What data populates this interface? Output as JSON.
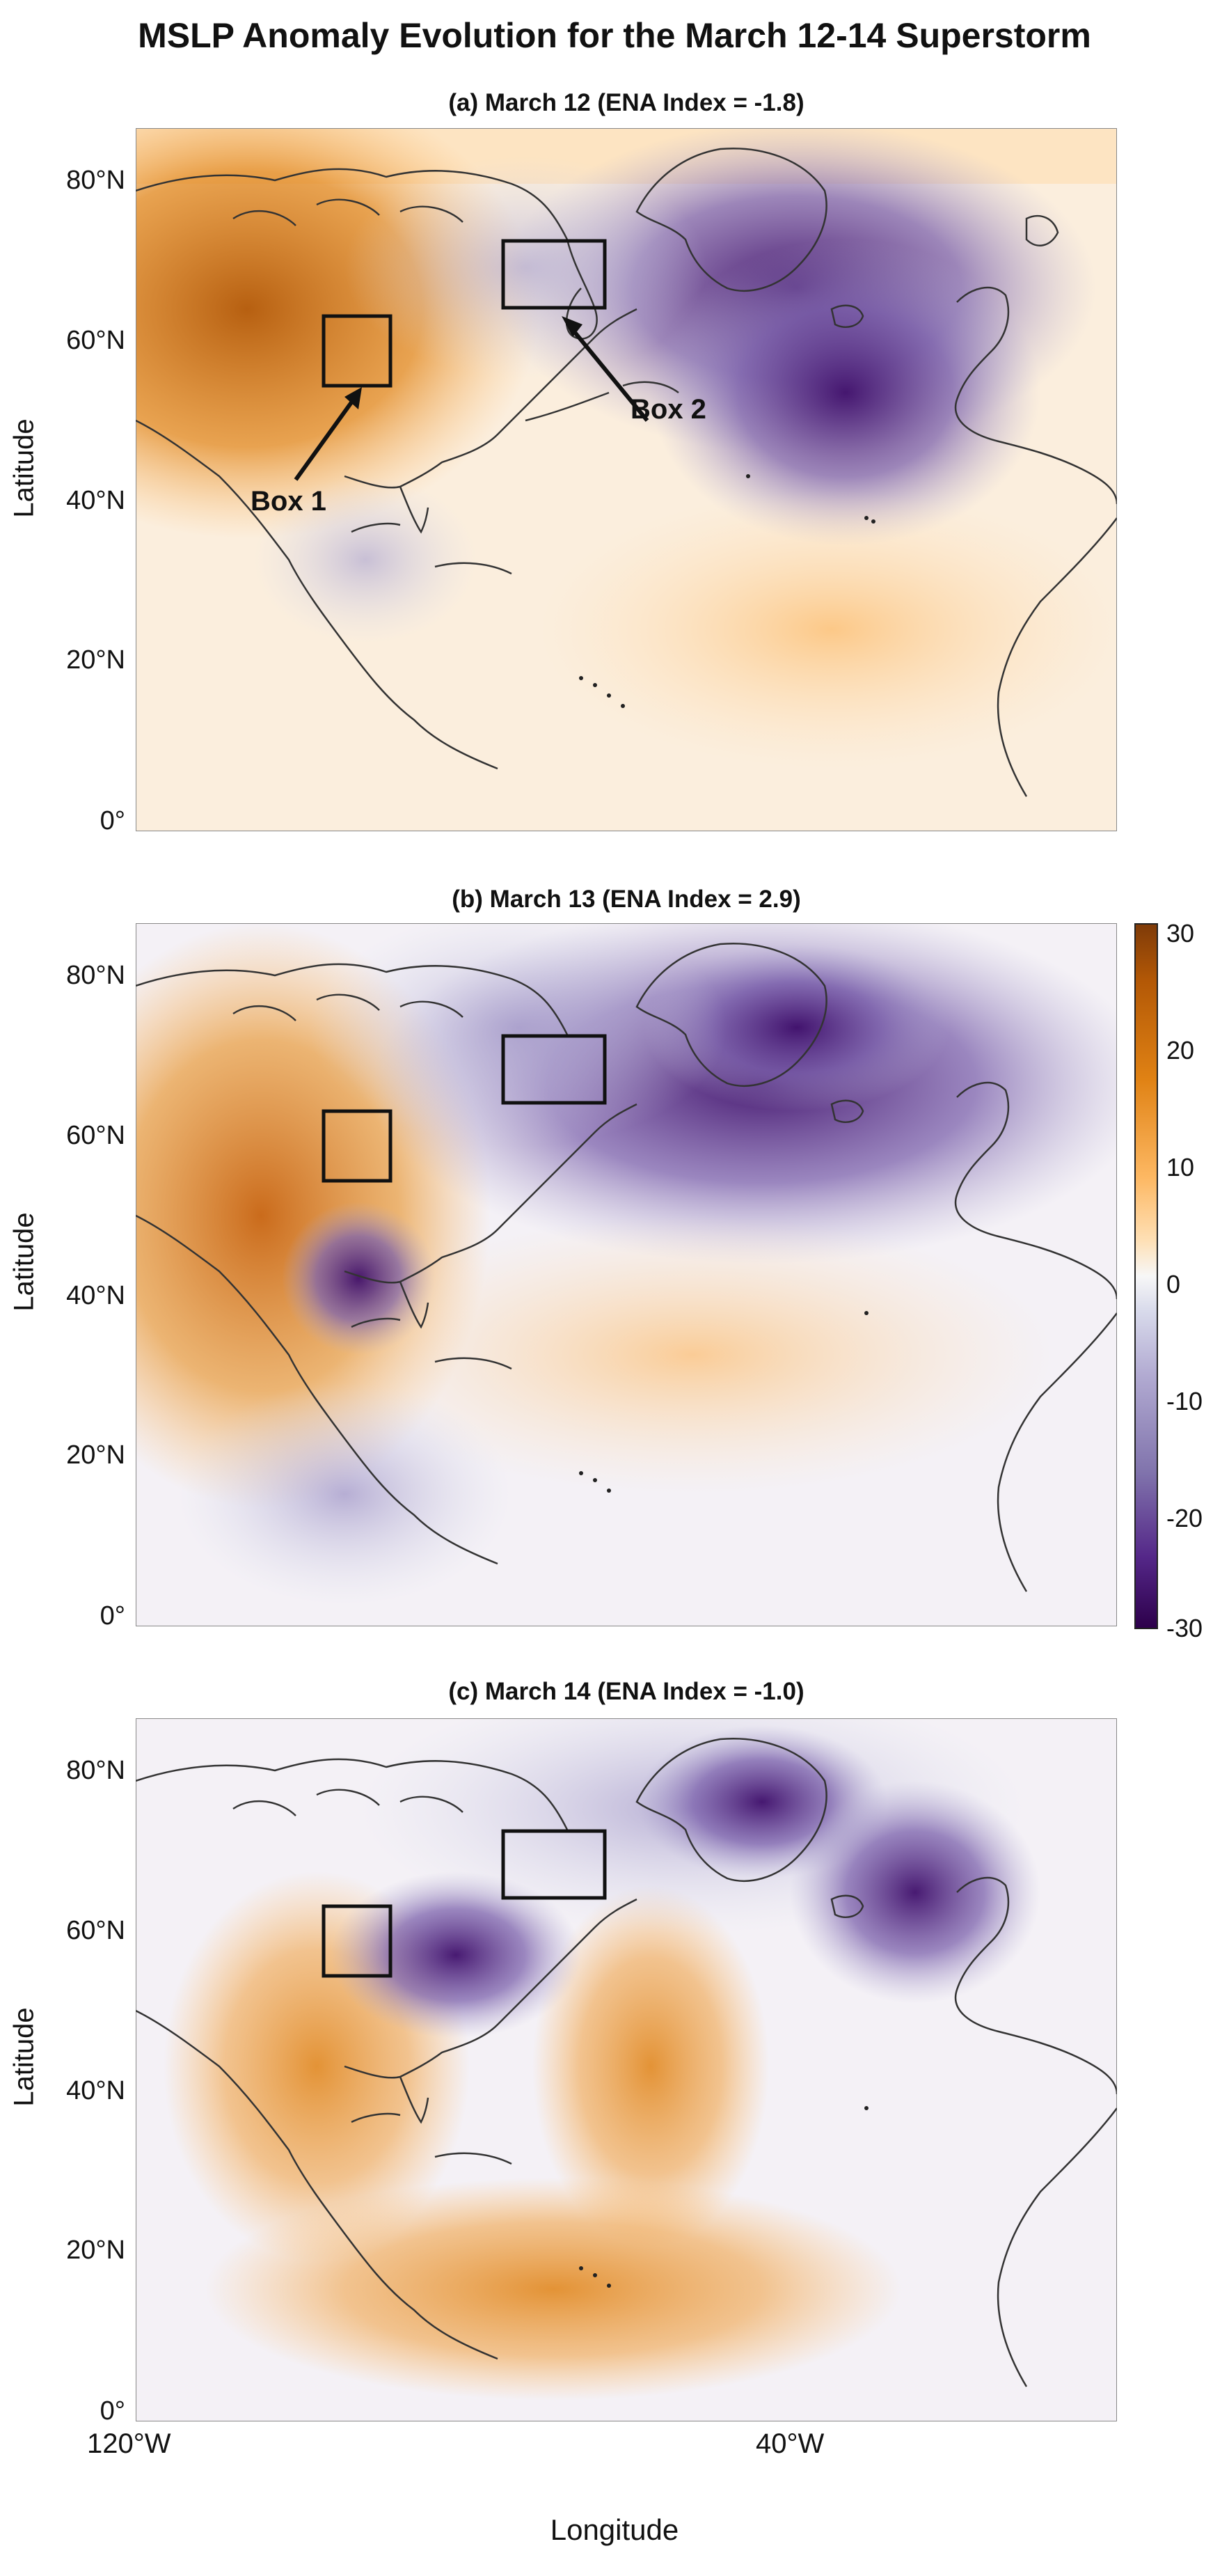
{
  "figure": {
    "title": "MSLP Anomaly Evolution for the March 12-14 Superstorm",
    "xlabel": "Longitude",
    "ylabel": "Latitude",
    "lat_ticks": [
      "0°",
      "20°N",
      "40°N",
      "60°N",
      "80°N"
    ],
    "lon_ticks": [
      "120°W",
      "40°W"
    ]
  },
  "panels": [
    {
      "title": "(a) March 12 (ENA Index = -1.8)"
    },
    {
      "title": "(b) March 13 (ENA Index = 2.9)"
    },
    {
      "title": "(c) March 14 (ENA Index = -1.0)"
    }
  ],
  "annotations": {
    "box1": "Box 1",
    "box2": "Box 2"
  },
  "colorbar": {
    "ticks": [
      "30",
      "20",
      "10",
      "0",
      "-10",
      "-20",
      "-30"
    ],
    "range": [
      -30,
      30
    ],
    "colors": [
      "#7f3b08",
      "#e08214",
      "#fdb863",
      "#f7f7f7",
      "#b2abd2",
      "#542788",
      "#2d004b"
    ]
  }
}
